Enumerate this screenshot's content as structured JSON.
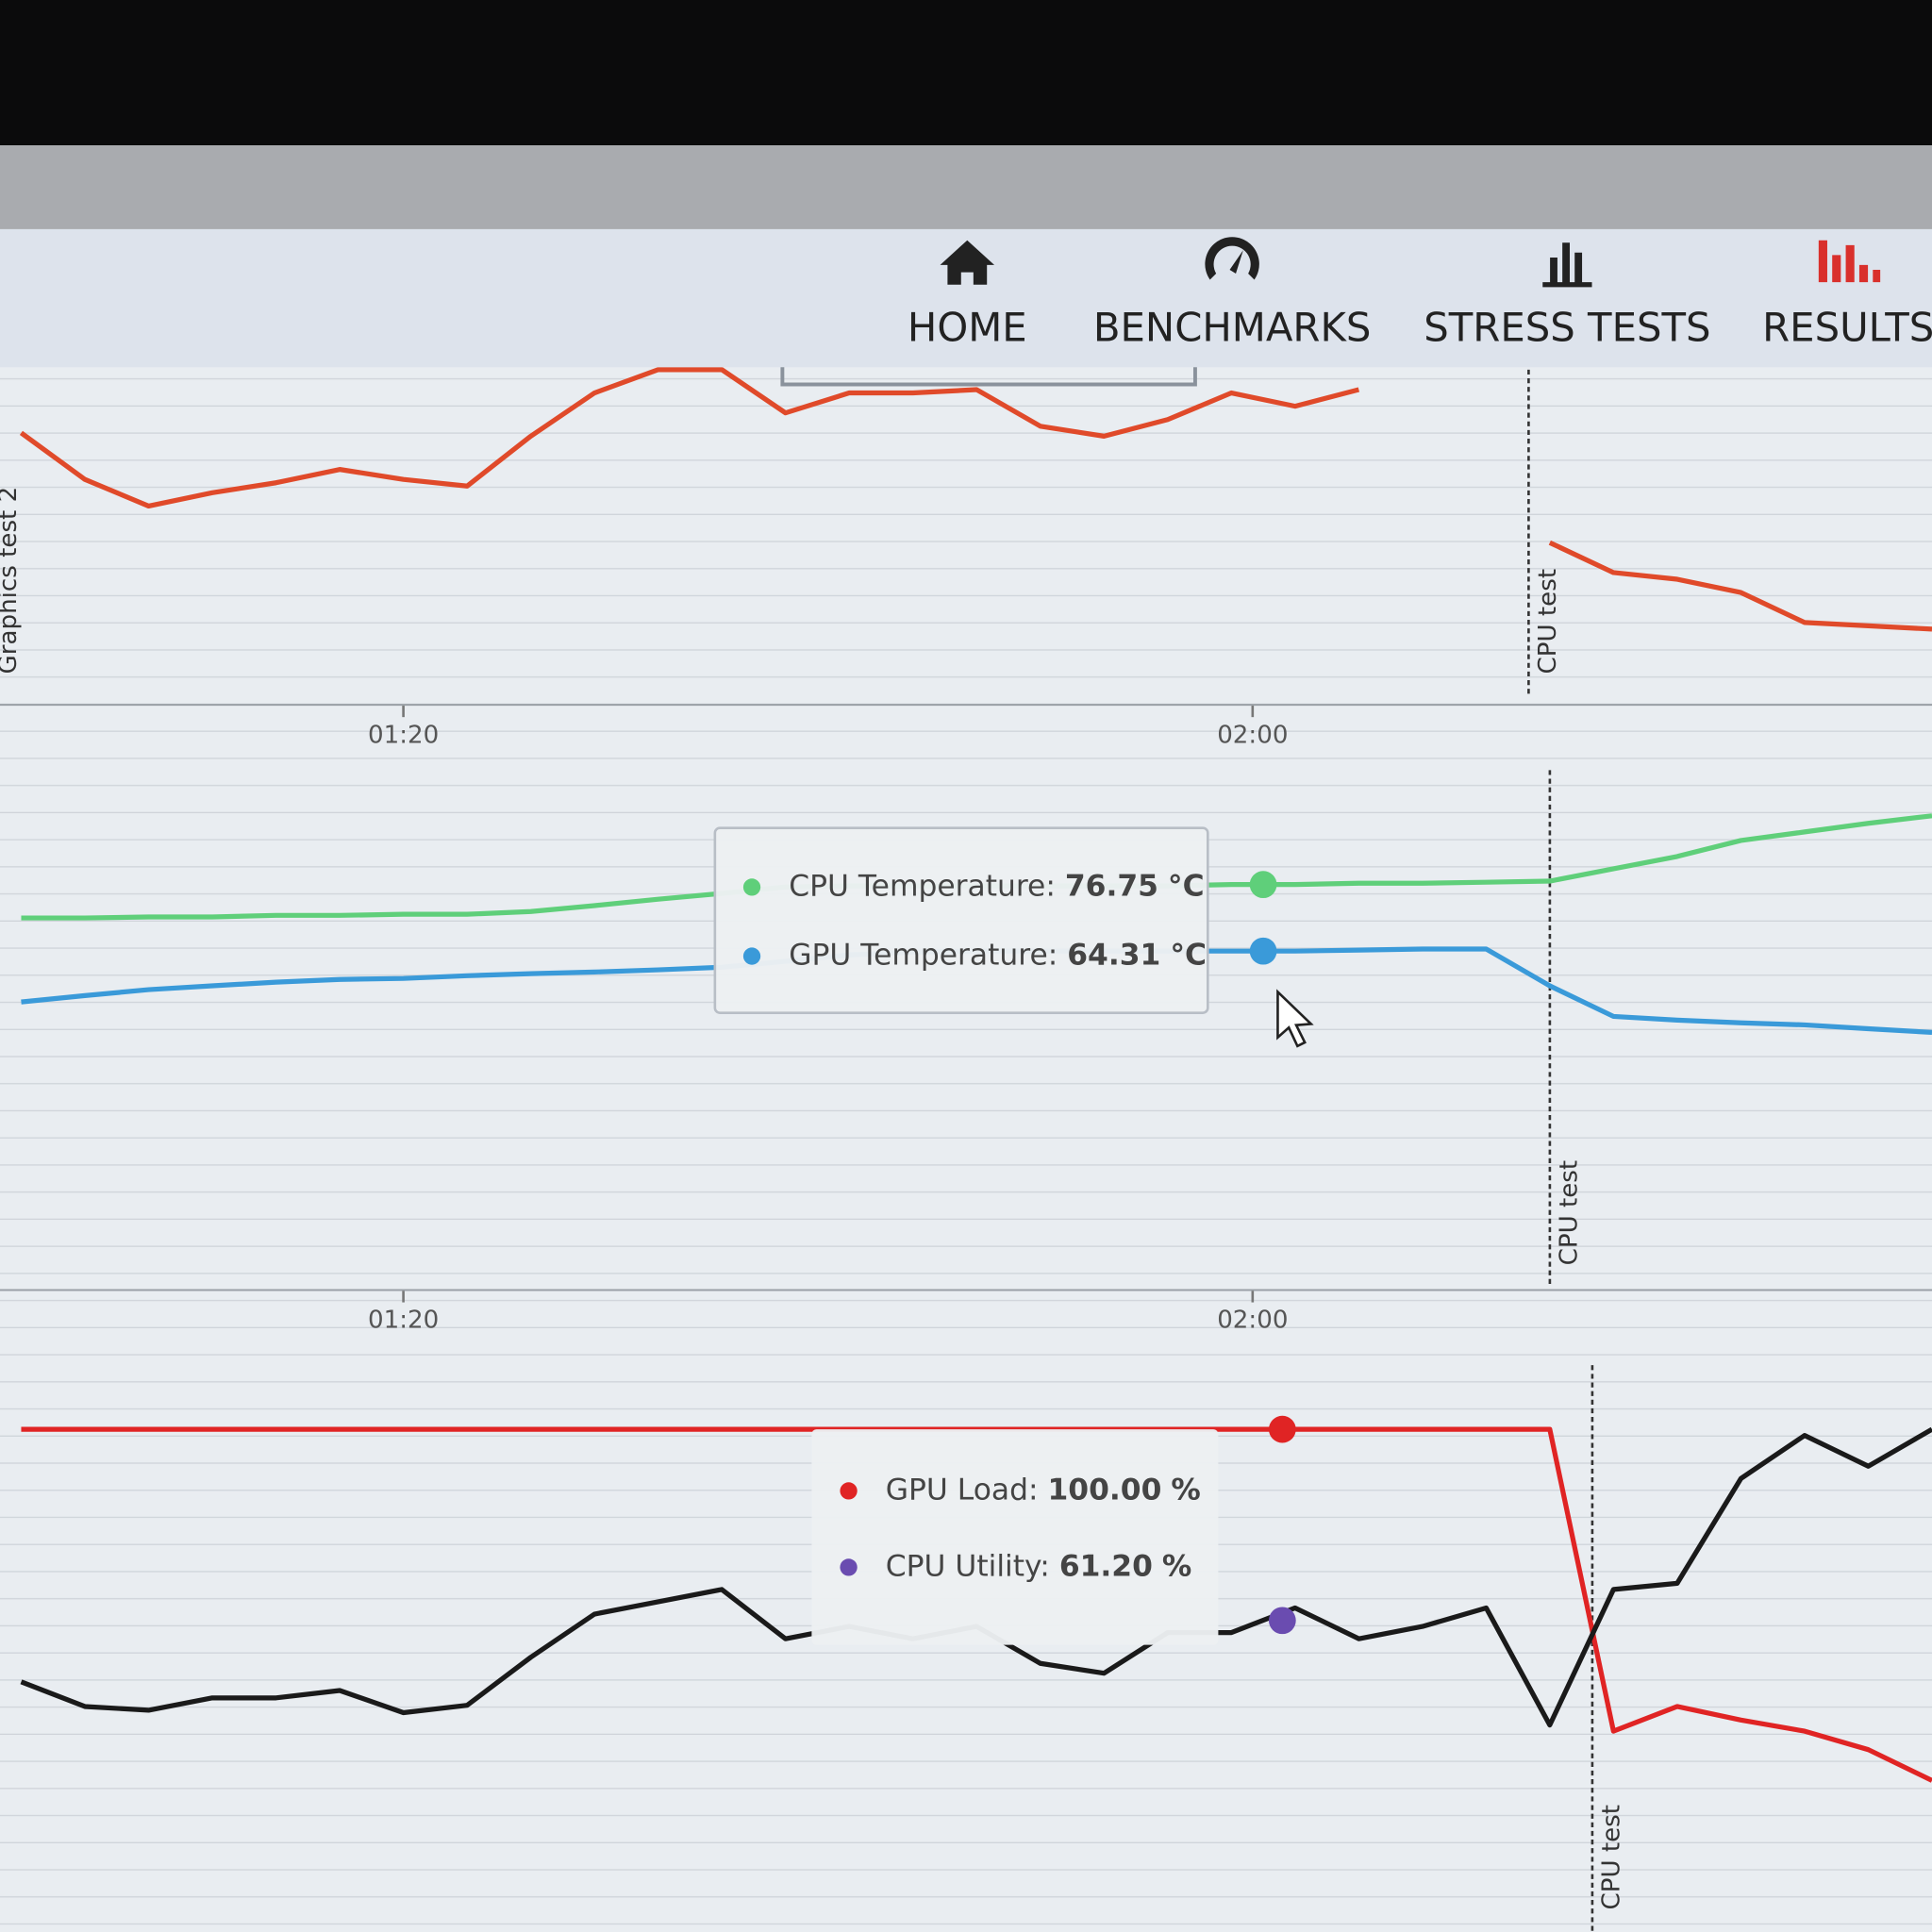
{
  "nav": {
    "items": [
      "HOME",
      "BENCHMARKS",
      "STRESS TESTS",
      "RESULTS"
    ],
    "active": 3
  },
  "chart_data": [
    {
      "type": "line",
      "xlim": [
        61,
        152
      ],
      "ylim": [
        0,
        100
      ],
      "x": [
        62,
        65,
        68,
        71,
        74,
        77,
        80,
        83,
        86,
        89,
        92,
        95,
        98,
        101,
        104,
        107,
        110,
        113,
        116,
        119,
        122,
        125,
        128,
        131,
        134,
        137,
        140,
        143,
        146,
        149,
        152
      ],
      "series": [
        {
          "color": "#e04a2a",
          "values": [
            81,
            67,
            59,
            63,
            66,
            70,
            67,
            65,
            80,
            93,
            100,
            100,
            87,
            93,
            93,
            94,
            83,
            80,
            85,
            93,
            89,
            94,
            null,
            null,
            48,
            39,
            37,
            33,
            24,
            23,
            22
          ]
        }
      ],
      "xticks": [
        {
          "value": 80,
          "label": "01:20"
        },
        {
          "value": 120,
          "label": "02:00"
        }
      ],
      "annotations": [
        {
          "x": 60.5,
          "label": "Graphics test 2"
        },
        {
          "x": 133,
          "label": "CPU test"
        }
      ]
    },
    {
      "type": "line",
      "xlim": [
        61,
        152
      ],
      "ylim": [
        0,
        100
      ],
      "x": [
        62,
        65,
        68,
        71,
        74,
        77,
        80,
        83,
        86,
        89,
        92,
        95,
        98,
        101,
        104,
        107,
        110,
        113,
        116,
        119,
        122,
        125,
        128,
        131,
        134,
        137,
        140,
        143,
        146,
        149,
        152
      ],
      "series": [
        {
          "color": "#5fcf7a",
          "values": [
            70.5,
            70.5,
            70.7,
            70.7,
            71,
            71,
            71.2,
            71.2,
            71.7,
            72.8,
            74,
            75.1,
            76.3,
            76.5,
            76.5,
            76.5,
            76.5,
            76.5,
            76.5,
            76.75,
            76.75,
            77,
            77,
            77.2,
            77.4,
            79.7,
            82,
            85,
            86.6,
            88.2,
            89.6
          ]
        },
        {
          "color": "#3a9ad9",
          "values": [
            54.8,
            56,
            57.1,
            57.8,
            58.5,
            59,
            59.2,
            59.7,
            60.1,
            60.4,
            60.8,
            61.3,
            62.4,
            63.6,
            64.1,
            64.31,
            64.31,
            64.31,
            64.31,
            64.31,
            64.31,
            64.5,
            64.7,
            64.7,
            57.8,
            52.1,
            51.4,
            50.9,
            50.5,
            49.8,
            49.1
          ]
        }
      ],
      "xticks": [
        {
          "value": 80,
          "label": "01:20"
        },
        {
          "value": 120,
          "label": "02:00"
        }
      ],
      "annotations": [
        {
          "x": 134,
          "label": "CPU test"
        }
      ],
      "tooltip": {
        "x": 120.5,
        "items": [
          {
            "label": "CPU Temperature:",
            "value": 76.75,
            "unit": "°C"
          },
          {
            "label": "GPU Temperature:",
            "value": 64.31,
            "unit": "°C"
          }
        ]
      }
    },
    {
      "type": "line",
      "xlim": [
        61,
        152
      ],
      "ylim": [
        0,
        100
      ],
      "x": [
        62,
        65,
        68,
        71,
        74,
        77,
        80,
        83,
        86,
        89,
        92,
        95,
        98,
        101,
        104,
        107,
        110,
        113,
        116,
        119,
        122,
        125,
        128,
        131,
        134,
        137,
        140,
        143,
        146,
        149,
        152
      ],
      "series": [
        {
          "color": "#e02424",
          "values": [
            100,
            100,
            100,
            100,
            100,
            100,
            100,
            100,
            100,
            100,
            100,
            100,
            100,
            100,
            100,
            100,
            100,
            100,
            100,
            100,
            100,
            100,
            100,
            100,
            100,
            38.75,
            43.75,
            41,
            38.75,
            35,
            28.75
          ]
        },
        {
          "color": "#1a1a1a",
          "values": [
            48.75,
            43.75,
            43,
            45.5,
            45.5,
            47,
            42.5,
            44,
            53.75,
            62.5,
            65,
            67.5,
            57.5,
            60,
            57.5,
            60,
            52.5,
            50.5,
            58.75,
            58.75,
            63.75,
            57.5,
            60,
            63.75,
            40,
            67.5,
            68.75,
            90,
            98.75,
            92.5,
            100
          ]
        }
      ],
      "annotations": [
        {
          "x": 136,
          "label": "CPU test"
        }
      ],
      "tooltip": {
        "x": 121.4,
        "items": [
          {
            "label": "GPU Load:",
            "value": 100,
            "value_label": "100.00",
            "unit": "%",
            "color": "#e02424"
          },
          {
            "label": "CPU Utility:",
            "value": 61.2,
            "value_label": "61.20",
            "unit": "%",
            "color": "#6a4cb0"
          }
        ]
      }
    }
  ]
}
